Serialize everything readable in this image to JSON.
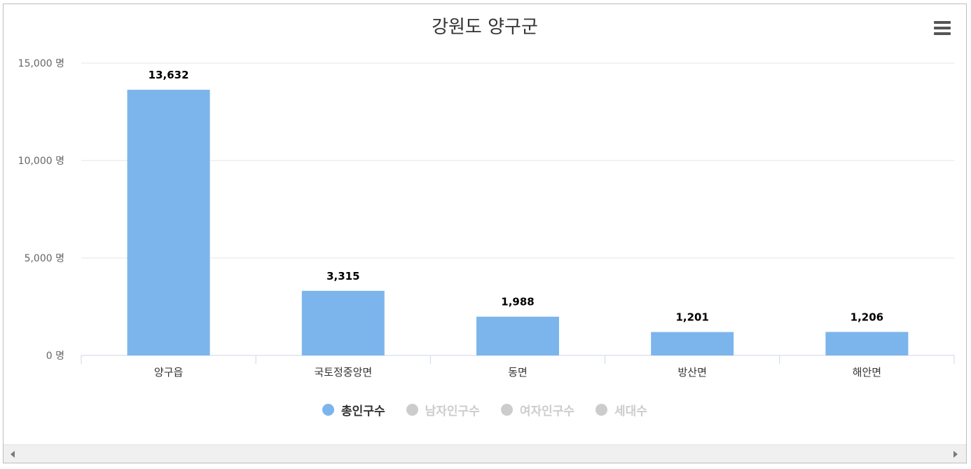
{
  "title": "강원도 양구군",
  "menu_icon": "hamburger-menu-icon",
  "colors": {
    "bar": "#7cb5ec",
    "legend_active": "#333333",
    "legend_inactive": "#cccccc",
    "grid": "#e6e6e6",
    "axis": "#ccd6eb"
  },
  "legend": [
    {
      "label": "총인구수",
      "active": true,
      "color": "#7cb5ec"
    },
    {
      "label": "남자인구수",
      "active": false,
      "color": "#cccccc"
    },
    {
      "label": "여자인구수",
      "active": false,
      "color": "#cccccc"
    },
    {
      "label": "세대수",
      "active": false,
      "color": "#cccccc"
    }
  ],
  "scrollbar": {
    "left_icon": "scroll-left-arrow-icon",
    "right_icon": "scroll-right-arrow-icon"
  },
  "chart_data": {
    "type": "bar",
    "title": "강원도 양구군",
    "categories": [
      "양구읍",
      "국토정중앙면",
      "동면",
      "방산면",
      "해안면"
    ],
    "series": [
      {
        "name": "총인구수",
        "values": [
          13632,
          3315,
          1988,
          1201,
          1206
        ]
      }
    ],
    "data_labels": [
      "13,632",
      "3,315",
      "1,988",
      "1,201",
      "1,206"
    ],
    "y_ticks": [
      0,
      5000,
      10000,
      15000
    ],
    "y_tick_labels": [
      "0 명",
      "5,000 명",
      "10,000 명",
      "15,000 명"
    ],
    "ylim": [
      0,
      15000
    ],
    "xlabel": "",
    "ylabel": "",
    "grid": true
  }
}
